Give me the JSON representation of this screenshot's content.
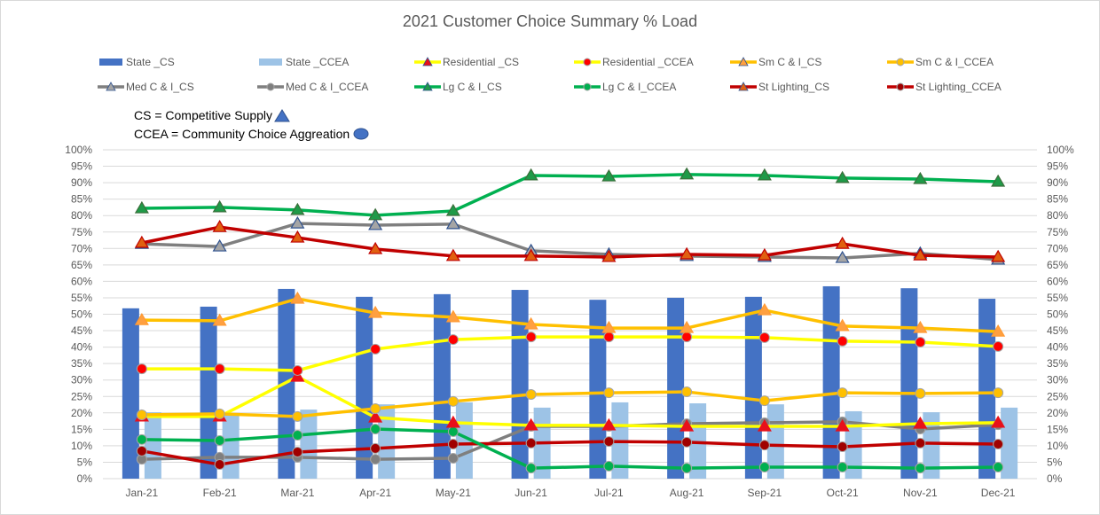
{
  "chart_data": {
    "type": "bar+line",
    "title": "2021 Customer Choice Summary % Load",
    "xlabel": "",
    "ylabel": "",
    "ylim": [
      0,
      100
    ],
    "y_ticks": [
      "0%",
      "5%",
      "10%",
      "15%",
      "20%",
      "25%",
      "30%",
      "35%",
      "40%",
      "45%",
      "50%",
      "55%",
      "60%",
      "65%",
      "70%",
      "75%",
      "80%",
      "85%",
      "90%",
      "95%",
      "100%"
    ],
    "secondary_y_ticks": [
      "0%",
      "5%",
      "10%",
      "15%",
      "20%",
      "25%",
      "30%",
      "35%",
      "40%",
      "45%",
      "50%",
      "55%",
      "60%",
      "65%",
      "70%",
      "75%",
      "80%",
      "85%",
      "90%",
      "95%",
      "100%"
    ],
    "grid": true,
    "legend_position": "top",
    "categories": [
      "Jan-21",
      "Feb-21",
      "Mar-21",
      "Apr-21",
      "May-21",
      "Jun-21",
      "Jul-21",
      "Aug-21",
      "Sep-21",
      "Oct-21",
      "Nov-21",
      "Dec-21"
    ],
    "series": [
      {
        "name": "State _CS",
        "kind": "bar",
        "color": "#4472c4",
        "values": [
          51.8,
          52.3,
          57.7,
          55.3,
          56.1,
          57.4,
          54.4,
          55.0,
          55.3,
          58.5,
          57.9,
          54.7
        ]
      },
      {
        "name": "State _CCEA",
        "kind": "bar",
        "color": "#9dc3e6",
        "values": [
          20.2,
          19.9,
          21.0,
          22.6,
          23.2,
          21.6,
          23.2,
          22.9,
          22.6,
          20.5,
          20.2,
          21.6
        ]
      },
      {
        "name": "Residential _CS",
        "kind": "line",
        "marker": "triangle",
        "color": "#ffff00",
        "marker_color": "#e8101a",
        "values": [
          18.9,
          18.9,
          31.0,
          18.6,
          17.0,
          16.2,
          16.2,
          15.9,
          15.9,
          15.9,
          16.7,
          17.0
        ]
      },
      {
        "name": "Residential _CCEA",
        "kind": "line",
        "marker": "circle",
        "color": "#ffff00",
        "marker_color": "#ff0000",
        "values": [
          33.4,
          33.4,
          32.9,
          39.4,
          42.3,
          43.1,
          43.1,
          43.1,
          42.9,
          41.8,
          41.5,
          40.2
        ]
      },
      {
        "name": "Sm C & I_CS",
        "kind": "line",
        "marker": "triangle",
        "color": "#ffc000",
        "marker_color": "#ffa040",
        "values": [
          48.2,
          48.0,
          54.7,
          50.4,
          49.1,
          46.9,
          45.8,
          45.8,
          51.2,
          46.4,
          45.8,
          44.7
        ]
      },
      {
        "name": "Sm C & I_CCEA",
        "kind": "line",
        "marker": "circle",
        "color": "#ffc000",
        "marker_color": "#ffc000",
        "values": [
          19.4,
          19.7,
          18.9,
          21.3,
          23.5,
          25.6,
          26.1,
          26.4,
          23.7,
          26.1,
          25.9,
          26.1
        ]
      },
      {
        "name": "Med C & I_CS",
        "kind": "line",
        "marker": "triangle",
        "color": "#7f7f7f",
        "marker_color": "#a5a5a5",
        "values": [
          71.4,
          70.6,
          77.6,
          77.1,
          77.4,
          69.3,
          68.2,
          67.7,
          67.4,
          67.1,
          68.5,
          66.6
        ]
      },
      {
        "name": "Med C & I_CCEA",
        "kind": "line",
        "marker": "circle",
        "color": "#7f7f7f",
        "marker_color": "#7f7f7f",
        "values": [
          5.9,
          6.5,
          6.5,
          5.9,
          6.2,
          15.9,
          15.9,
          16.7,
          17.0,
          17.3,
          15.1,
          16.4
        ]
      },
      {
        "name": "Lg C & I_CS",
        "kind": "line",
        "marker": "triangle",
        "color": "#00b050",
        "marker_color": "#1f9a48",
        "values": [
          82.2,
          82.5,
          81.7,
          80.1,
          81.4,
          92.2,
          91.9,
          92.5,
          92.2,
          91.4,
          91.1,
          90.3
        ]
      },
      {
        "name": "Lg C & I_CCEA",
        "kind": "line",
        "marker": "circle",
        "color": "#00b050",
        "marker_color": "#00b050",
        "values": [
          11.9,
          11.6,
          13.2,
          15.1,
          14.3,
          3.2,
          3.8,
          3.2,
          3.5,
          3.5,
          3.2,
          3.5
        ]
      },
      {
        "name": "St Lighting_CS",
        "kind": "line",
        "marker": "triangle",
        "color": "#c00000",
        "marker_color": "#e06010",
        "values": [
          71.7,
          76.5,
          73.3,
          69.8,
          67.7,
          67.7,
          67.4,
          68.2,
          67.9,
          71.4,
          67.9,
          67.4
        ]
      },
      {
        "name": "St Lighting_CCEA",
        "kind": "line",
        "marker": "circle",
        "color": "#c00000",
        "marker_color": "#a00000",
        "values": [
          8.4,
          4.3,
          8.1,
          9.2,
          10.5,
          10.8,
          11.3,
          11.1,
          10.2,
          9.7,
          10.8,
          10.5
        ]
      }
    ],
    "annotations": [
      {
        "text": "CS = Competitive Supply",
        "symbol": "triangle",
        "color": "#4472c4"
      },
      {
        "text": "CCEA = Community Choice Aggreation",
        "symbol": "circle",
        "color": "#4472c4"
      }
    ]
  }
}
